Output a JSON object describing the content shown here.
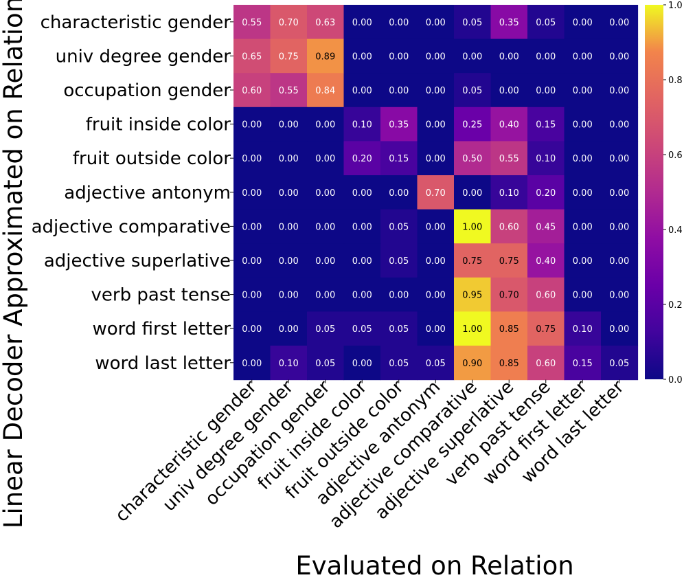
{
  "chart_data": {
    "type": "heatmap",
    "title": "",
    "xlabel": "Evaluated on Relation",
    "ylabel": "Linear Decoder Approximated on Relation",
    "x_categories": [
      "characteristic gender",
      "univ degree gender",
      "occupation gender",
      "fruit inside color",
      "fruit outside color",
      "adjective antonym",
      "adjective comparative",
      "adjective superlative",
      "verb past tense",
      "word first letter",
      "word last letter"
    ],
    "y_categories": [
      "characteristic gender",
      "univ degree gender",
      "occupation gender",
      "fruit inside color",
      "fruit outside color",
      "adjective antonym",
      "adjective comparative",
      "adjective superlative",
      "verb past tense",
      "word first letter",
      "word last letter"
    ],
    "values": [
      [
        0.55,
        0.7,
        0.63,
        0.0,
        0.0,
        0.0,
        0.05,
        0.35,
        0.05,
        0.0,
        0.0
      ],
      [
        0.65,
        0.75,
        0.89,
        0.0,
        0.0,
        0.0,
        0.0,
        0.0,
        0.0,
        0.0,
        0.0
      ],
      [
        0.6,
        0.55,
        0.84,
        0.0,
        0.0,
        0.0,
        0.05,
        0.0,
        0.0,
        0.0,
        0.0
      ],
      [
        0.0,
        0.0,
        0.0,
        0.1,
        0.35,
        0.0,
        0.25,
        0.4,
        0.15,
        0.0,
        0.0
      ],
      [
        0.0,
        0.0,
        0.0,
        0.2,
        0.15,
        0.0,
        0.5,
        0.55,
        0.1,
        0.0,
        0.0
      ],
      [
        0.0,
        0.0,
        0.0,
        0.0,
        0.0,
        0.7,
        0.0,
        0.1,
        0.2,
        0.0,
        0.0
      ],
      [
        0.0,
        0.0,
        0.0,
        0.0,
        0.05,
        0.0,
        1.0,
        0.6,
        0.45,
        0.0,
        0.0
      ],
      [
        0.0,
        0.0,
        0.0,
        0.0,
        0.05,
        0.0,
        0.75,
        0.75,
        0.4,
        0.0,
        0.0
      ],
      [
        0.0,
        0.0,
        0.0,
        0.0,
        0.0,
        0.0,
        0.95,
        0.7,
        0.6,
        0.0,
        0.0
      ],
      [
        0.0,
        0.0,
        0.05,
        0.05,
        0.05,
        0.0,
        1.0,
        0.85,
        0.75,
        0.1,
        0.0
      ],
      [
        0.0,
        0.1,
        0.05,
        0.0,
        0.05,
        0.05,
        0.9,
        0.85,
        0.6,
        0.15,
        0.05
      ]
    ],
    "colormap": "plasma",
    "vmin": 0.0,
    "vmax": 1.0,
    "colorbar_ticks": [
      "0.0",
      "0.2",
      "0.4",
      "0.6",
      "0.8",
      "1.0"
    ],
    "value_format": "0.00"
  }
}
